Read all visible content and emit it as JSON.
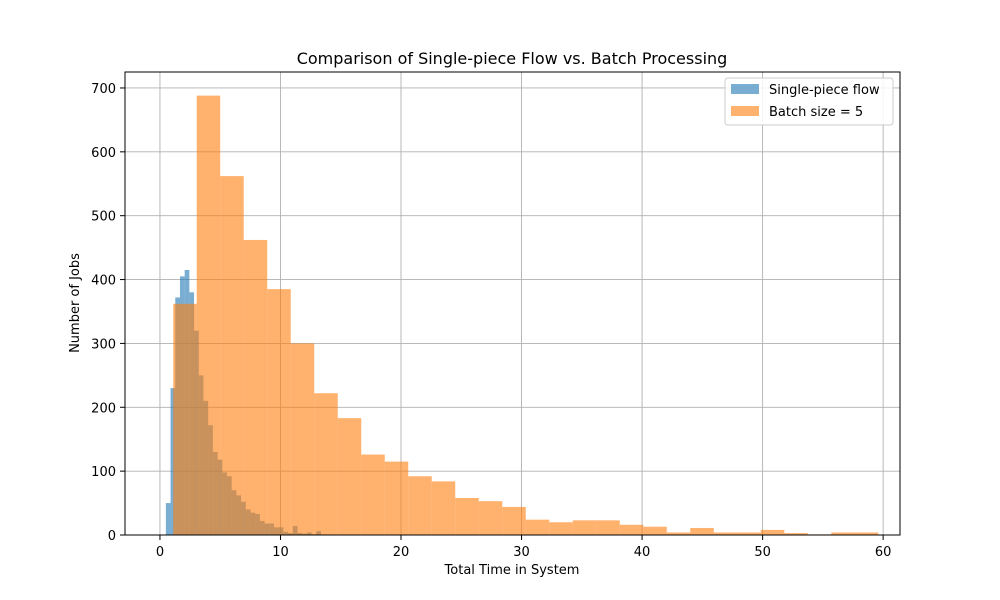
{
  "chart_data": {
    "type": "bar",
    "subtype": "overlaid histogram",
    "title": "Comparison of Single-piece Flow vs. Batch Processing",
    "xlabel": "Total Time in System",
    "ylabel": "Number of Jobs",
    "xlim": [
      -2.9,
      61.4
    ],
    "ylim": [
      0,
      725
    ],
    "xticks": [
      0,
      10,
      20,
      30,
      40,
      50,
      60
    ],
    "yticks": [
      0,
      100,
      200,
      300,
      400,
      500,
      600,
      700
    ],
    "grid": true,
    "legend_position": "upper right",
    "series": [
      {
        "name": "Single-piece flow",
        "color": "#1f77b4",
        "opacity": 0.6,
        "bin_width": 0.39,
        "bin_start": 0.1,
        "values": [
          0,
          50,
          230,
          372,
          405,
          415,
          380,
          320,
          250,
          210,
          172,
          130,
          118,
          98,
          92,
          70,
          62,
          52,
          40,
          35,
          33,
          22,
          18,
          18,
          12,
          12,
          5,
          3,
          14,
          3,
          2,
          4,
          1,
          6,
          0,
          0,
          0,
          0,
          0,
          0,
          0,
          0
        ]
      },
      {
        "name": "Batch size = 5",
        "color": "#ff7f0e",
        "opacity": 0.6,
        "bin_width": 1.95,
        "bin_start": 1.1,
        "values": [
          362,
          688,
          562,
          462,
          385,
          300,
          222,
          183,
          126,
          115,
          92,
          84,
          58,
          53,
          44,
          24,
          20,
          23,
          23,
          16,
          13,
          4,
          11,
          4,
          4,
          8,
          3,
          1,
          4,
          4
        ]
      }
    ]
  }
}
